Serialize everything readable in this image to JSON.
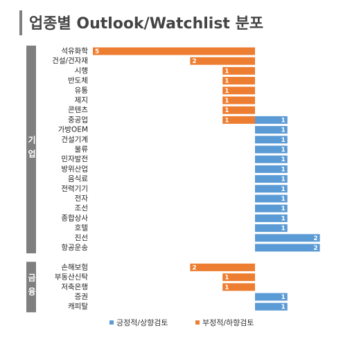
{
  "chart_data": {
    "type": "diverging-bar",
    "title": "업종별 Outlook/Watchlist 분포",
    "categories": [
      "석유화학",
      "건설/건자재",
      "시행",
      "반도체",
      "유통",
      "제지",
      "콘텐츠",
      "중공업",
      "가방OEM",
      "건설기계",
      "물류",
      "민자발전",
      "방위산업",
      "음식료",
      "전력기기",
      "전자",
      "조선",
      "종합상사",
      "호텔",
      "진선",
      "항공운송",
      null,
      "손해보험",
      "부동산신탁",
      "저축은행",
      "증권",
      "캐피탈"
    ],
    "groups": [
      "기업",
      "금융"
    ],
    "series": [
      {
        "name": "긍정적/상향검토",
        "color": "#5b9bd5",
        "direction": "right",
        "values": [
          null,
          null,
          null,
          null,
          null,
          null,
          null,
          1,
          1,
          1,
          1,
          1,
          1,
          1,
          1,
          1,
          1,
          1,
          1,
          2,
          2,
          null,
          null,
          null,
          null,
          1,
          1
        ]
      },
      {
        "name": "부정적/하향검토",
        "color": "#ed7d31",
        "direction": "left",
        "values": [
          5,
          2,
          1,
          1,
          1,
          1,
          1,
          1,
          null,
          null,
          null,
          null,
          null,
          null,
          null,
          null,
          null,
          null,
          null,
          null,
          null,
          null,
          2,
          1,
          1,
          null,
          null
        ]
      }
    ]
  }
}
